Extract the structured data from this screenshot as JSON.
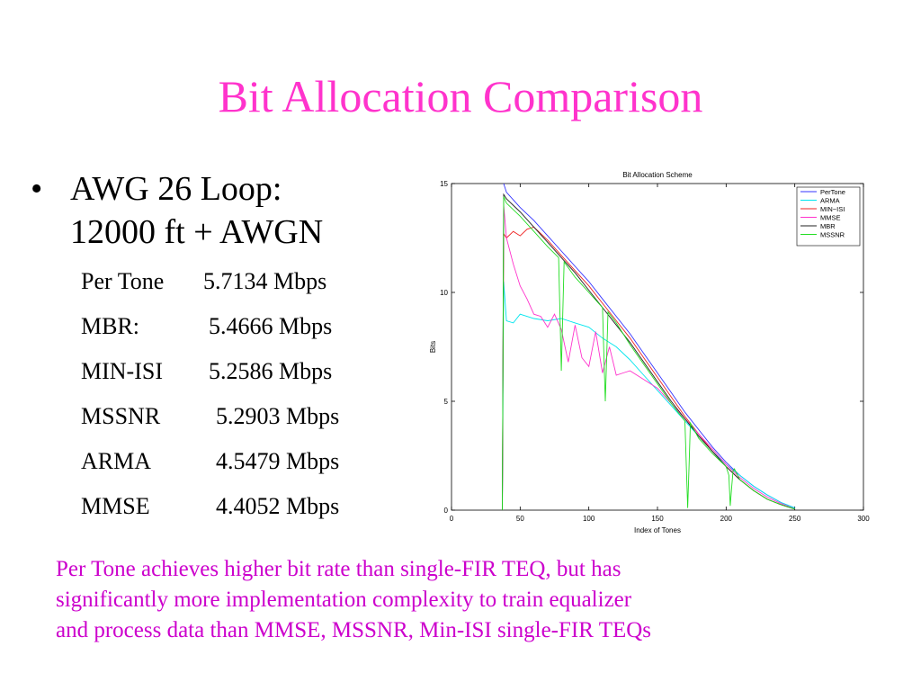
{
  "slide": {
    "title": "Bit Allocation Comparison",
    "bullet_marker": "•",
    "bullet_line1": "AWG 26 Loop:",
    "bullet_line2": "12000 ft + AWGN",
    "rates": [
      {
        "name": "Per Tone",
        "value": "5.7134 Mbps"
      },
      {
        "name": "MBR:",
        "value": "5.4666 Mbps"
      },
      {
        "name": "MIN-ISI",
        "value": "5.2586 Mbps"
      },
      {
        "name": "MSSNR",
        "value": "5.2903 Mbps"
      },
      {
        "name": "ARMA",
        "value": "4.5479 Mbps"
      },
      {
        "name": "MMSE",
        "value": "4.4052 Mbps"
      }
    ],
    "note_line1": "Per Tone achieves higher bit rate than single-FIR TEQ, but has",
    "note_line2": "significantly more implementation complexity to train equalizer",
    "note_line3": "and process data than MMSE, MSSNR, Min-ISI single-FIR TEQs",
    "title_color": "#ff33cc",
    "note_color": "#cc00cc"
  },
  "chart_data": {
    "type": "line",
    "title": "Bit Allocation Scheme",
    "xlabel": "Index of Tones",
    "ylabel": "Bits",
    "xlim": [
      0,
      300
    ],
    "ylim": [
      0,
      15
    ],
    "xticks": [
      0,
      50,
      100,
      150,
      200,
      250,
      300
    ],
    "yticks": [
      0,
      5,
      10,
      15
    ],
    "legend_position": "top-right",
    "grid": false,
    "series": [
      {
        "name": "PerTone",
        "color": "#3333ff",
        "x": [
          38,
          40,
          50,
          60,
          70,
          80,
          90,
          100,
          110,
          120,
          130,
          140,
          150,
          160,
          170,
          180,
          190,
          200,
          210,
          220,
          230,
          240,
          250
        ],
        "y": [
          15.0,
          14.6,
          13.9,
          13.3,
          12.6,
          11.9,
          11.2,
          10.5,
          9.7,
          8.9,
          8.1,
          7.2,
          6.3,
          5.4,
          4.5,
          3.7,
          2.9,
          2.2,
          1.6,
          1.1,
          0.7,
          0.35,
          0.1
        ]
      },
      {
        "name": "ARMA",
        "color": "#00e5ee",
        "x": [
          37,
          38,
          40,
          45,
          50,
          60,
          70,
          80,
          90,
          100,
          110,
          120,
          130,
          140,
          150,
          160,
          170,
          180,
          190,
          200,
          210,
          220,
          230,
          240,
          250
        ],
        "y": [
          0,
          10.5,
          8.7,
          8.6,
          9.0,
          8.8,
          8.7,
          8.8,
          8.6,
          8.4,
          7.9,
          7.5,
          6.9,
          6.2,
          5.5,
          4.8,
          4.1,
          3.4,
          2.7,
          2.1,
          1.6,
          1.1,
          0.7,
          0.35,
          0.1
        ]
      },
      {
        "name": "MIN−ISI",
        "color": "#ee2222",
        "x": [
          37,
          38,
          40,
          45,
          50,
          55,
          60,
          70,
          80,
          90,
          100,
          110,
          120,
          130,
          140,
          150,
          160,
          170,
          180,
          190,
          200,
          210,
          220,
          230,
          240,
          250
        ],
        "y": [
          0,
          12.7,
          12.5,
          12.8,
          12.6,
          12.9,
          13.0,
          12.4,
          11.7,
          11.0,
          10.3,
          9.5,
          8.7,
          7.9,
          7.0,
          6.1,
          5.2,
          4.3,
          3.5,
          2.7,
          2.0,
          1.4,
          0.9,
          0.5,
          0.25,
          0.05
        ]
      },
      {
        "name": "MMSE",
        "color": "#ff33cc",
        "x": [
          37,
          38,
          40,
          45,
          50,
          55,
          60,
          65,
          70,
          75,
          80,
          85,
          90,
          95,
          100,
          105,
          110,
          115,
          120,
          125,
          130,
          140,
          150,
          160,
          170,
          180,
          190,
          200,
          210,
          220,
          230,
          240,
          250
        ],
        "y": [
          0,
          14.0,
          12.5,
          11.3,
          10.3,
          9.7,
          9.0,
          8.9,
          8.4,
          9.0,
          8.3,
          6.8,
          8.5,
          7.0,
          6.6,
          8.2,
          6.3,
          7.5,
          6.2,
          6.3,
          6.4,
          6.0,
          5.6,
          4.9,
          4.2,
          3.5,
          2.8,
          2.1,
          1.5,
          1.0,
          0.6,
          0.3,
          0.05
        ]
      },
      {
        "name": "MBR",
        "color": "#222222",
        "x": [
          37,
          38,
          40,
          50,
          60,
          70,
          80,
          90,
          100,
          110,
          120,
          130,
          140,
          150,
          160,
          170,
          180,
          190,
          200,
          210,
          220,
          230,
          240,
          250
        ],
        "y": [
          0,
          14.5,
          14.3,
          13.7,
          13.0,
          12.3,
          11.6,
          10.9,
          10.1,
          9.3,
          8.5,
          7.7,
          6.8,
          5.9,
          5.0,
          4.2,
          3.4,
          2.7,
          2.0,
          1.4,
          0.9,
          0.5,
          0.25,
          0.05
        ]
      },
      {
        "name": "MSSNR",
        "color": "#22dd22",
        "x": [
          37,
          38,
          40,
          50,
          60,
          70,
          78,
          79,
          80,
          81,
          82,
          90,
          100,
          110,
          111,
          112,
          113,
          114,
          120,
          130,
          140,
          150,
          160,
          170,
          171,
          172,
          173,
          174,
          180,
          190,
          200,
          202,
          203,
          204,
          205,
          206,
          210,
          220,
          230,
          240,
          250
        ],
        "y": [
          0,
          14.4,
          14.1,
          13.5,
          12.8,
          12.1,
          11.6,
          9.0,
          6.4,
          9.0,
          11.4,
          10.7,
          10.0,
          9.3,
          7.0,
          5.0,
          7.0,
          9.1,
          8.6,
          7.6,
          6.7,
          5.8,
          4.9,
          4.1,
          2.0,
          0.1,
          2.0,
          4.0,
          3.3,
          2.6,
          2.0,
          1.6,
          0.2,
          1.0,
          1.8,
          1.9,
          1.4,
          0.9,
          0.5,
          0.25,
          0.05
        ]
      }
    ]
  }
}
